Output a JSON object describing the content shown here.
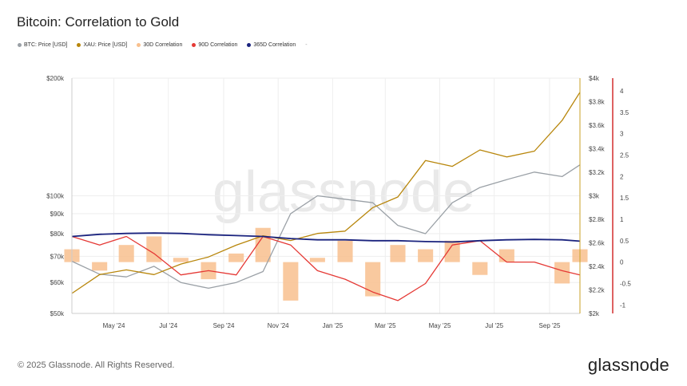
{
  "header": {
    "title": "Bitcoin: Correlation to Gold"
  },
  "legend": [
    {
      "label": "BTC: Price [USD]",
      "color": "#9aa0a6"
    },
    {
      "label": "XAU: Price [USD]",
      "color": "#b8860b"
    },
    {
      "label": "30D Correlation",
      "color": "#f8c08e"
    },
    {
      "label": "90D Correlation",
      "color": "#e53935"
    },
    {
      "label": "365D Correlation",
      "color": "#1a237e"
    },
    {
      "label": "-",
      "color": "#bbbbbb"
    }
  ],
  "footer": {
    "copyright": "© 2025 Glassnode. All Rights Reserved.",
    "brand": "glassnode"
  },
  "watermark": "glassnode",
  "chart_data": {
    "type": "line",
    "x_ticks": [
      "May '24",
      "Jul '24",
      "Sep '24",
      "Nov '24",
      "Jan '25",
      "Mar '25",
      "May '25",
      "Jul '25",
      "Sep '25"
    ],
    "x": [
      "2024-03-15",
      "2024-04-15",
      "2024-05-15",
      "2024-06-15",
      "2024-07-15",
      "2024-08-15",
      "2024-09-15",
      "2024-10-15",
      "2024-11-15",
      "2024-12-15",
      "2025-01-15",
      "2025-02-15",
      "2025-03-15",
      "2025-04-15",
      "2025-05-15",
      "2025-06-15",
      "2025-07-15",
      "2025-08-15",
      "2025-09-15",
      "2025-10-05"
    ],
    "left_axis": {
      "scale": "log",
      "range": [
        50000,
        200000
      ],
      "ticks": [
        "$50k",
        "$60k",
        "$70k",
        "$80k",
        "$90k",
        "$100k",
        "$200k"
      ],
      "tick_values": [
        50000,
        60000,
        70000,
        80000,
        90000,
        100000,
        200000
      ]
    },
    "right_axis_1": {
      "range": [
        2000,
        4000
      ],
      "ticks": [
        "$2k",
        "$2.2k",
        "$2.4k",
        "$2.6k",
        "$2.8k",
        "$3k",
        "$3.2k",
        "$3.4k",
        "$3.6k",
        "$3.8k",
        "$4k"
      ],
      "tick_values": [
        2000,
        2200,
        2400,
        2600,
        2800,
        3000,
        3200,
        3400,
        3600,
        3800,
        4000
      ]
    },
    "right_axis_2": {
      "range": [
        -1.2,
        4.3
      ],
      "ticks": [
        "-1",
        "-0.5",
        "0",
        "0.5",
        "1",
        "1.5",
        "2",
        "2.5",
        "3",
        "3.5",
        "4"
      ],
      "tick_values": [
        -1,
        -0.5,
        0,
        0.5,
        1,
        1.5,
        2,
        2.5,
        3,
        3.5,
        4
      ]
    },
    "series": [
      {
        "name": "BTC: Price [USD]",
        "color": "#9aa0a6",
        "axis": "left",
        "values": [
          68000,
          63000,
          62000,
          66000,
          60000,
          58000,
          60000,
          64000,
          90000,
          100000,
          98000,
          96000,
          84000,
          80000,
          96000,
          105000,
          110000,
          115000,
          112000,
          120000
        ]
      },
      {
        "name": "XAU: Price [USD]",
        "color": "#b8860b",
        "axis": "right_axis_1",
        "values": [
          2170,
          2330,
          2370,
          2330,
          2420,
          2480,
          2580,
          2660,
          2620,
          2680,
          2700,
          2900,
          2990,
          3300,
          3250,
          3390,
          3330,
          3380,
          3640,
          3880
        ]
      },
      {
        "name": "30D Correlation",
        "color": "#f8c08e",
        "axis": "right_axis_2",
        "type": "area",
        "values": [
          0.3,
          -0.2,
          0.4,
          0.6,
          0.1,
          -0.4,
          0.2,
          0.8,
          -0.9,
          0.1,
          0.5,
          -0.8,
          0.4,
          0.3,
          0.5,
          -0.3,
          0.3,
          0.0,
          -0.5,
          0.3
        ]
      },
      {
        "name": "90D Correlation",
        "color": "#e53935",
        "axis": "right_axis_2",
        "values": [
          0.6,
          0.4,
          0.6,
          0.2,
          -0.3,
          -0.2,
          -0.3,
          0.6,
          0.4,
          -0.2,
          -0.4,
          -0.7,
          -0.9,
          -0.5,
          0.4,
          0.5,
          0.0,
          0.0,
          -0.2,
          -0.3
        ]
      },
      {
        "name": "365D Correlation",
        "color": "#1a237e",
        "axis": "right_axis_2",
        "values": [
          0.6,
          0.65,
          0.67,
          0.68,
          0.67,
          0.64,
          0.62,
          0.6,
          0.55,
          0.52,
          0.52,
          0.5,
          0.5,
          0.48,
          0.47,
          0.5,
          0.52,
          0.53,
          0.52,
          0.49
        ]
      }
    ],
    "grid": true,
    "legend_position": "top-left"
  }
}
